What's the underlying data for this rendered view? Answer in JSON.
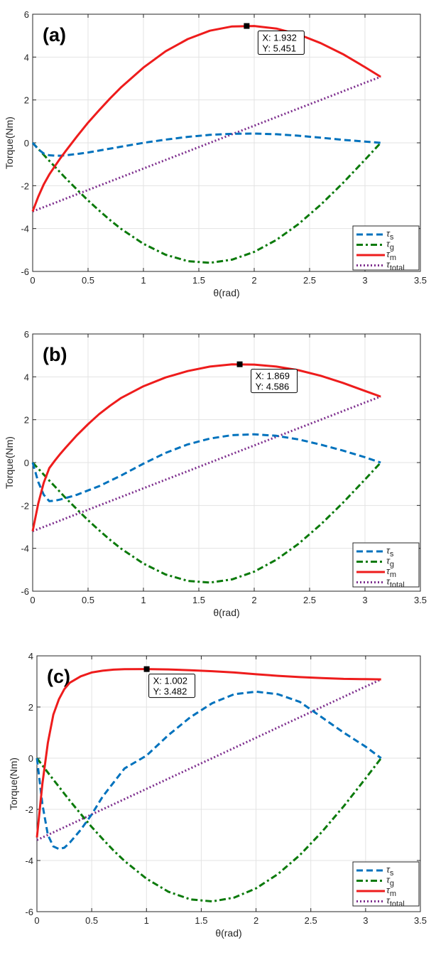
{
  "chart_data": [
    {
      "type": "line",
      "panel_label": "(a)",
      "xlabel": "θ(rad)",
      "ylabel": "Torque(Nm)",
      "xlim": [
        0,
        3.5
      ],
      "ylim": [
        -6,
        6
      ],
      "xticks": [
        "0",
        "0.5",
        "1",
        "1.5",
        "2",
        "2.5",
        "3",
        "3.5"
      ],
      "yticks": [
        "-6",
        "-4",
        "-2",
        "0",
        "2",
        "4",
        "6"
      ],
      "grid": true,
      "legend_position": "bottom-right",
      "x": [
        0,
        0.05,
        0.1,
        0.15,
        0.2,
        0.25,
        0.3,
        0.4,
        0.5,
        0.6,
        0.7,
        0.8,
        1.0,
        1.2,
        1.4,
        1.6,
        1.8,
        2.0,
        2.2,
        2.4,
        2.6,
        2.8,
        3.0,
        3.1416
      ],
      "series": [
        {
          "name": "τs",
          "symbol": "τ",
          "sub": "s",
          "color": "#0072BD",
          "style": "dashed",
          "values": [
            0,
            -0.3,
            -0.5,
            -0.58,
            -0.6,
            -0.6,
            -0.58,
            -0.52,
            -0.45,
            -0.36,
            -0.27,
            -0.18,
            0.0,
            0.15,
            0.28,
            0.37,
            0.42,
            0.43,
            0.4,
            0.33,
            0.24,
            0.14,
            0.06,
            0
          ]
        },
        {
          "name": "τg",
          "symbol": "τ",
          "sub": "g",
          "color": "#0B7A0B",
          "style": "dashdot",
          "values": [
            0,
            -0.28,
            -0.56,
            -0.84,
            -1.11,
            -1.39,
            -1.66,
            -2.18,
            -2.69,
            -3.16,
            -3.61,
            -4.02,
            -4.71,
            -5.22,
            -5.52,
            -5.6,
            -5.45,
            -5.09,
            -4.53,
            -3.79,
            -2.89,
            -1.88,
            -0.79,
            0
          ]
        },
        {
          "name": "τm",
          "symbol": "τ",
          "sub": "m",
          "color": "#EE1C1C",
          "style": "solid",
          "values": [
            -3.2,
            -2.52,
            -1.94,
            -1.48,
            -1.09,
            -0.72,
            -0.37,
            0.3,
            0.94,
            1.52,
            2.08,
            2.6,
            3.51,
            4.27,
            4.84,
            5.23,
            5.43,
            5.45,
            5.33,
            5.06,
            4.65,
            4.14,
            3.53,
            3.08
          ]
        },
        {
          "name": "τtotal",
          "symbol": "τ",
          "sub": "total",
          "color": "#7E2F8E",
          "style": "dotted",
          "values": [
            -3.2,
            -3.1,
            -3.0,
            -2.9,
            -2.8,
            -2.7,
            -2.6,
            -2.4,
            -2.2,
            -2.0,
            -1.8,
            -1.6,
            -1.2,
            -0.8,
            -0.4,
            0,
            0.4,
            0.8,
            1.2,
            1.6,
            2.0,
            2.4,
            2.8,
            3.08
          ]
        }
      ],
      "datatip": {
        "x": 1.932,
        "y": 5.451,
        "x_text": "X: 1.932",
        "y_text": "Y: 5.451"
      }
    },
    {
      "type": "line",
      "panel_label": "(b)",
      "xlabel": "θ(rad)",
      "ylabel": "Torque(Nm)",
      "xlim": [
        0,
        3.5
      ],
      "ylim": [
        -6,
        6
      ],
      "xticks": [
        "0",
        "0.5",
        "1",
        "1.5",
        "2",
        "2.5",
        "3",
        "3.5"
      ],
      "yticks": [
        "-6",
        "-4",
        "-2",
        "0",
        "2",
        "4",
        "6"
      ],
      "grid": true,
      "legend_position": "bottom-right",
      "x": [
        0,
        0.05,
        0.1,
        0.15,
        0.2,
        0.25,
        0.3,
        0.4,
        0.5,
        0.6,
        0.7,
        0.8,
        1.0,
        1.2,
        1.4,
        1.6,
        1.8,
        2.0,
        2.2,
        2.4,
        2.6,
        2.8,
        3.0,
        3.1416
      ],
      "series": [
        {
          "name": "τs",
          "symbol": "τ",
          "sub": "s",
          "color": "#0072BD",
          "style": "dashed",
          "values": [
            0,
            -0.9,
            -1.5,
            -1.8,
            -1.78,
            -1.72,
            -1.65,
            -1.5,
            -1.3,
            -1.1,
            -0.85,
            -0.6,
            -0.05,
            0.45,
            0.85,
            1.12,
            1.28,
            1.32,
            1.25,
            1.08,
            0.84,
            0.56,
            0.25,
            0
          ]
        },
        {
          "name": "τg",
          "symbol": "τ",
          "sub": "g",
          "color": "#0B7A0B",
          "style": "dashdot",
          "values": [
            0,
            -0.28,
            -0.56,
            -0.84,
            -1.11,
            -1.39,
            -1.66,
            -2.18,
            -2.69,
            -3.16,
            -3.61,
            -4.02,
            -4.71,
            -5.22,
            -5.52,
            -5.6,
            -5.45,
            -5.09,
            -4.53,
            -3.79,
            -2.89,
            -1.88,
            -0.79,
            0
          ]
        },
        {
          "name": "τm",
          "symbol": "τ",
          "sub": "m",
          "color": "#EE1C1C",
          "style": "solid",
          "values": [
            -3.2,
            -1.92,
            -0.94,
            -0.26,
            0.09,
            0.41,
            0.71,
            1.28,
            1.79,
            2.26,
            2.66,
            3.02,
            3.56,
            3.97,
            4.27,
            4.48,
            4.58,
            4.57,
            4.48,
            4.31,
            4.05,
            3.72,
            3.34,
            3.08
          ]
        },
        {
          "name": "τtotal",
          "symbol": "τ",
          "sub": "total",
          "color": "#7E2F8E",
          "style": "dotted",
          "values": [
            -3.2,
            -3.1,
            -3.0,
            -2.9,
            -2.8,
            -2.7,
            -2.6,
            -2.4,
            -2.2,
            -2.0,
            -1.8,
            -1.6,
            -1.2,
            -0.8,
            -0.4,
            0,
            0.4,
            0.8,
            1.2,
            1.6,
            2.0,
            2.4,
            2.8,
            3.08
          ]
        }
      ],
      "datatip": {
        "x": 1.869,
        "y": 4.586,
        "x_text": "X: 1.869",
        "y_text": "Y: 4.586"
      }
    },
    {
      "type": "line",
      "panel_label": "(c)",
      "xlabel": "θ(rad)",
      "ylabel": "Torque(Nm)",
      "xlim": [
        0,
        3.5
      ],
      "ylim": [
        -6,
        4
      ],
      "xticks": [
        "0",
        "0.5",
        "1",
        "1.5",
        "2",
        "2.5",
        "3",
        "3.5"
      ],
      "yticks": [
        "-6",
        "-4",
        "-2",
        "0",
        "2",
        "4"
      ],
      "grid": true,
      "legend_position": "bottom-right",
      "x": [
        0,
        0.05,
        0.1,
        0.15,
        0.2,
        0.25,
        0.3,
        0.4,
        0.5,
        0.6,
        0.7,
        0.8,
        1.0,
        1.2,
        1.4,
        1.6,
        1.8,
        2.0,
        2.2,
        2.4,
        2.6,
        2.8,
        3.0,
        3.1416
      ],
      "series": [
        {
          "name": "τs",
          "symbol": "τ",
          "sub": "s",
          "color": "#0072BD",
          "style": "dashed",
          "values": [
            0,
            -1.8,
            -3.0,
            -3.45,
            -3.55,
            -3.5,
            -3.3,
            -2.8,
            -2.2,
            -1.5,
            -0.95,
            -0.4,
            0.1,
            0.9,
            1.6,
            2.15,
            2.5,
            2.6,
            2.5,
            2.2,
            1.6,
            1.0,
            0.45,
            0
          ]
        },
        {
          "name": "τg",
          "symbol": "τ",
          "sub": "g",
          "color": "#0B7A0B",
          "style": "dashdot",
          "values": [
            0,
            -0.28,
            -0.56,
            -0.84,
            -1.11,
            -1.39,
            -1.66,
            -2.18,
            -2.69,
            -3.16,
            -3.61,
            -4.02,
            -4.71,
            -5.22,
            -5.52,
            -5.6,
            -5.45,
            -5.09,
            -4.53,
            -3.79,
            -2.89,
            -1.88,
            -0.79,
            0
          ]
        },
        {
          "name": "τm",
          "symbol": "τ",
          "sub": "m",
          "color": "#EE1C1C",
          "style": "solid",
          "values": [
            -3.1,
            -1.0,
            0.6,
            1.7,
            2.3,
            2.7,
            2.95,
            3.2,
            3.35,
            3.42,
            3.46,
            3.48,
            3.482,
            3.47,
            3.44,
            3.4,
            3.35,
            3.28,
            3.22,
            3.17,
            3.13,
            3.1,
            3.09,
            3.08
          ]
        },
        {
          "name": "τtotal",
          "symbol": "τ",
          "sub": "total",
          "color": "#7E2F8E",
          "style": "dotted",
          "values": [
            -3.2,
            -3.1,
            -3.0,
            -2.9,
            -2.8,
            -2.7,
            -2.6,
            -2.4,
            -2.2,
            -2.0,
            -1.8,
            -1.6,
            -1.2,
            -0.8,
            -0.4,
            0,
            0.4,
            0.8,
            1.2,
            1.6,
            2.0,
            2.4,
            2.8,
            3.08
          ]
        }
      ],
      "datatip": {
        "x": 1.002,
        "y": 3.482,
        "x_text": "X: 1.002",
        "y_text": "Y: 3.482"
      }
    }
  ]
}
